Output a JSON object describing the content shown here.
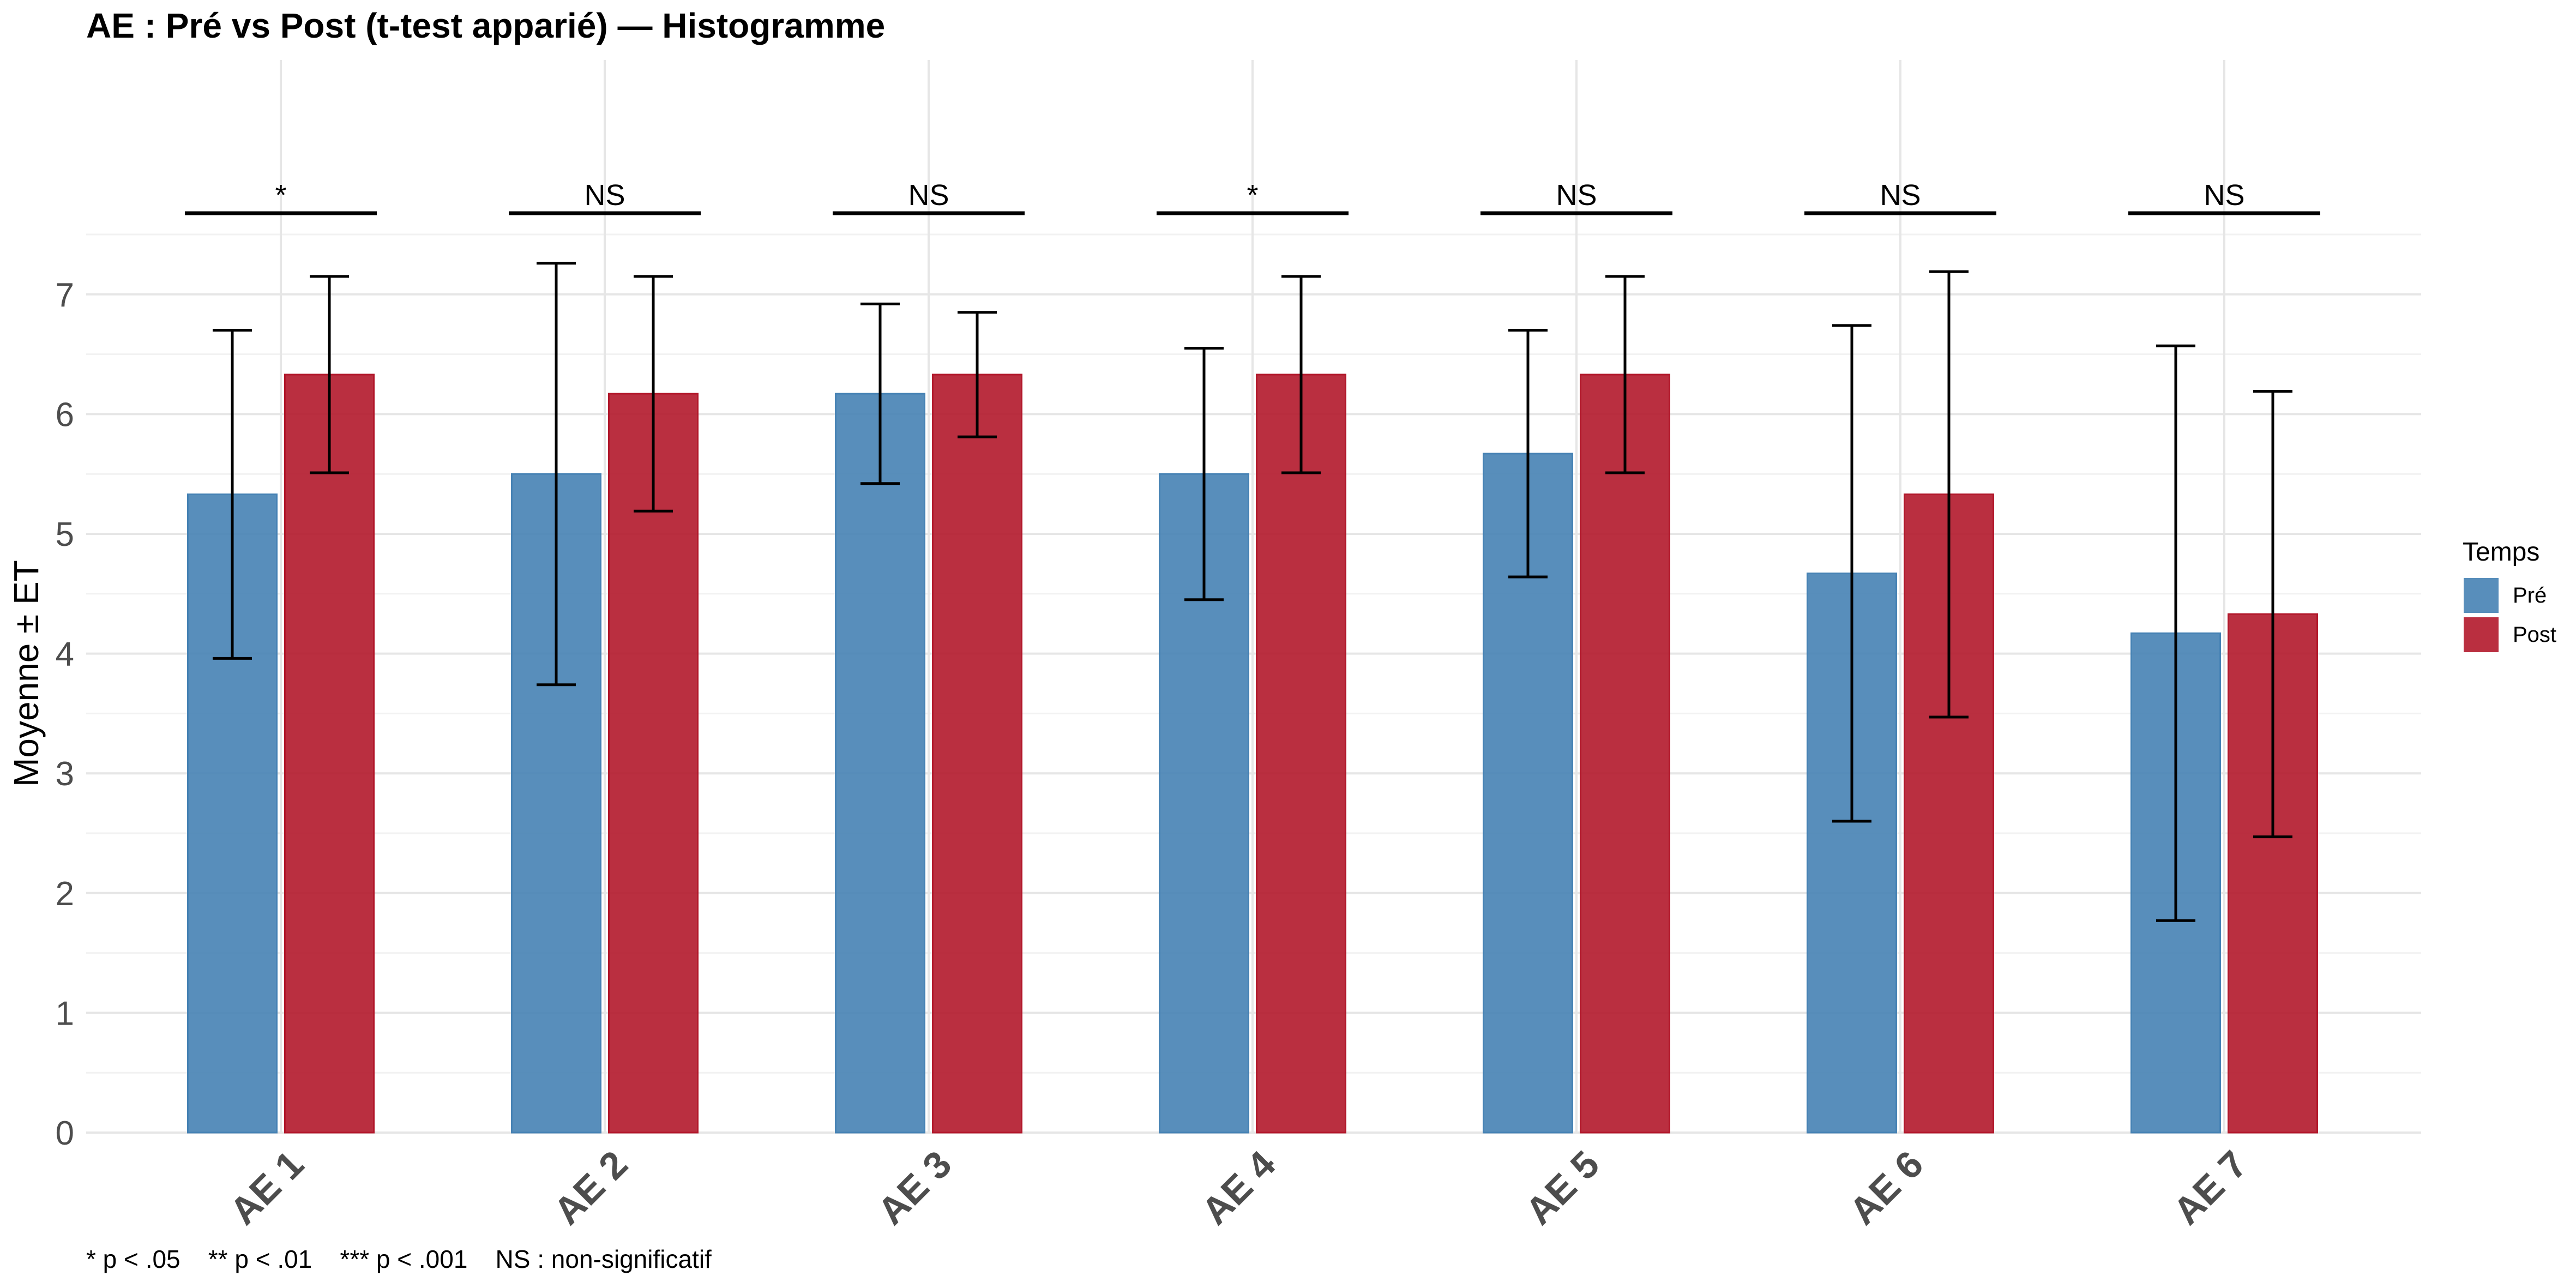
{
  "chart_data": {
    "type": "bar",
    "title": "AE : Pré vs Post (t-test apparié) — Histogramme",
    "xlabel": "",
    "ylabel": "Moyenne ± ET",
    "ylim": [
      0,
      7.9
    ],
    "yticks": [
      0,
      1,
      2,
      3,
      4,
      5,
      6,
      7
    ],
    "grid": true,
    "categories": [
      "AE 1",
      "AE 2",
      "AE 3",
      "AE 4",
      "AE 5",
      "AE 6",
      "AE 7"
    ],
    "series": [
      {
        "name": "Pré",
        "color": "#4682B4",
        "values": [
          5.33,
          5.5,
          6.17,
          5.5,
          5.67,
          4.67,
          4.17
        ],
        "sd": [
          1.37,
          1.76,
          0.75,
          1.05,
          1.03,
          2.07,
          2.4
        ]
      },
      {
        "name": "Post",
        "color": "#B2182B",
        "values": [
          6.33,
          6.17,
          6.33,
          6.33,
          6.33,
          5.33,
          4.33
        ],
        "sd": [
          0.82,
          0.98,
          0.52,
          0.82,
          0.82,
          1.86,
          1.86
        ]
      }
    ],
    "significance": [
      "*",
      "NS",
      "NS",
      "*",
      "NS",
      "NS",
      "NS"
    ],
    "legend": {
      "title": "Temps",
      "position": "right"
    },
    "footnote": "* p < .05    ** p < .01    *** p < .001    NS : non-significatif"
  }
}
